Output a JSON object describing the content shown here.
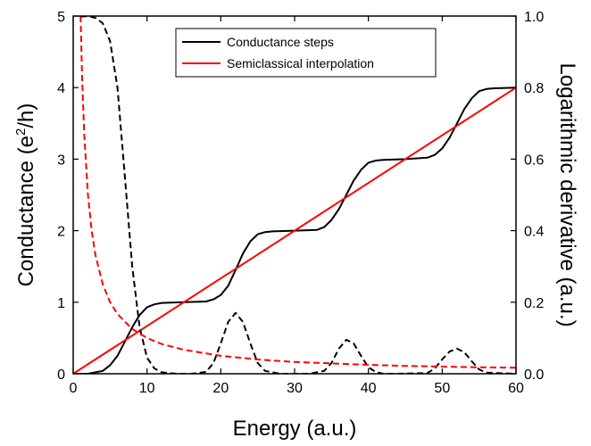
{
  "chart_data": {
    "type": "line",
    "xlabel": "Energy (a.u.)",
    "ylabel": {
      "main": "Conductance (e",
      "sup": "2",
      "tail": "/h)"
    },
    "y2label": "Logarithmic derivative (a.u.)",
    "xlim": [
      0,
      60
    ],
    "ylim": [
      0,
      5
    ],
    "y2lim": [
      0,
      1.0
    ],
    "xticks": [
      "0",
      "10",
      "20",
      "30",
      "40",
      "50",
      "60"
    ],
    "yticks": [
      "0",
      "1",
      "2",
      "3",
      "4",
      "5"
    ],
    "y2ticks": [
      "0.0",
      "0.2",
      "0.4",
      "0.6",
      "0.8",
      "1.0"
    ],
    "grid": false,
    "legend_position": "top-center",
    "series": [
      {
        "name": "Conductance steps",
        "axis": "left",
        "color": "#000000",
        "style": "solid",
        "x": [
          0,
          2,
          4,
          5,
          6,
          7,
          8,
          9,
          10,
          11,
          12,
          15,
          18,
          19,
          20,
          21,
          22,
          23,
          24,
          25,
          26,
          27,
          30,
          33,
          34,
          35,
          36,
          37,
          38,
          39,
          40,
          41,
          42,
          45,
          48,
          49,
          50,
          51,
          52,
          53,
          54,
          55,
          56,
          57,
          60
        ],
        "values": [
          0,
          0.0,
          0.04,
          0.12,
          0.25,
          0.45,
          0.65,
          0.82,
          0.93,
          0.97,
          0.99,
          1.0,
          1.01,
          1.04,
          1.1,
          1.23,
          1.45,
          1.68,
          1.85,
          1.95,
          1.98,
          1.99,
          2.0,
          2.01,
          2.05,
          2.15,
          2.3,
          2.5,
          2.7,
          2.85,
          2.95,
          2.98,
          2.99,
          3.0,
          3.02,
          3.06,
          3.15,
          3.3,
          3.5,
          3.7,
          3.85,
          3.95,
          3.98,
          3.99,
          4.0
        ]
      },
      {
        "name": "Semiclassical interpolation",
        "axis": "left",
        "color": "#ff0000",
        "style": "solid",
        "x": [
          0,
          60
        ],
        "values": [
          0,
          4
        ]
      },
      {
        "axis": "right",
        "color": "#000000",
        "style": "dashed",
        "x": [
          1,
          2,
          3,
          4,
          5,
          6,
          7,
          8,
          9,
          10,
          11,
          12,
          14,
          16,
          18,
          19,
          20,
          21,
          22,
          23,
          24,
          25,
          26,
          28,
          32,
          34,
          35,
          36,
          37,
          38,
          39,
          40,
          41,
          42,
          44,
          48,
          49,
          50,
          51,
          52,
          53,
          54,
          55,
          56,
          60
        ],
        "values": [
          0.998,
          1.0,
          0.995,
          0.98,
          0.93,
          0.8,
          0.55,
          0.3,
          0.13,
          0.045,
          0.015,
          0.004,
          0.0,
          0.0,
          0.005,
          0.03,
          0.085,
          0.145,
          0.17,
          0.145,
          0.085,
          0.03,
          0.008,
          0.0,
          0.0,
          0.008,
          0.03,
          0.07,
          0.095,
          0.085,
          0.05,
          0.018,
          0.005,
          0.0,
          0.0,
          0.002,
          0.015,
          0.04,
          0.062,
          0.07,
          0.06,
          0.035,
          0.012,
          0.003,
          0.0
        ]
      },
      {
        "axis": "right",
        "color": "#ff0000",
        "style": "dashed",
        "x": [
          1,
          1.2,
          1.5,
          2,
          2.5,
          3,
          4,
          5,
          6,
          8,
          10,
          12,
          15,
          20,
          25,
          30,
          35,
          40,
          45,
          50,
          55,
          60
        ],
        "values": [
          1.0,
          0.833,
          0.667,
          0.5,
          0.4,
          0.333,
          0.25,
          0.2,
          0.167,
          0.125,
          0.1,
          0.083,
          0.067,
          0.05,
          0.04,
          0.033,
          0.029,
          0.025,
          0.022,
          0.02,
          0.018,
          0.017
        ]
      }
    ]
  }
}
